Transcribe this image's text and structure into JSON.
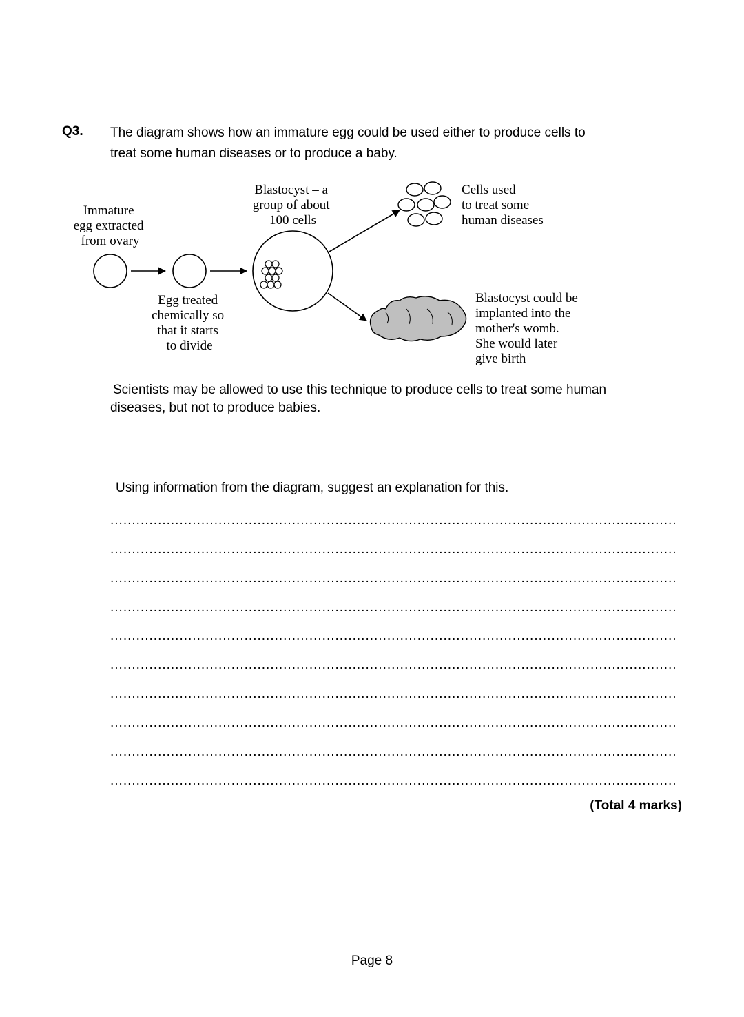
{
  "question": {
    "number": "Q3.",
    "intro_line1": "The diagram shows how an immature egg could be used either to produce cells to",
    "intro_line2": "treat some human diseases or to produce a baby.",
    "followup_line1": "Scientists may be allowed to use this technique to produce cells to treat some human",
    "followup_line2": "diseases, but not to produce babies.",
    "prompt": "Using information from the diagram, suggest an explanation for this.",
    "marks_label": "(Total 4 marks)"
  },
  "diagram": {
    "font_family_serif": "Times New Roman",
    "stroke": "#000000",
    "baby_fill": "#bfbfbf",
    "labels": {
      "immature_l1": "Immature",
      "immature_l2": "egg extracted",
      "immature_l3": "from ovary",
      "treated_l1": "Egg treated",
      "treated_l2": "chemically so",
      "treated_l3": "that it starts",
      "treated_l4": "to divide",
      "blasto_l1": "Blastocyst – a",
      "blasto_l2": "group of about",
      "blasto_l3": "100 cells",
      "cells_l1": "Cells used",
      "cells_l2": "to treat some",
      "cells_l3": "human diseases",
      "implant_l1": "Blastocyst could be",
      "implant_l2": "implanted into the",
      "implant_l3": "mother's womb.",
      "implant_l4": "She would later",
      "implant_l5": "give birth"
    }
  },
  "page_number": "Page 8",
  "answer_line_count": 10,
  "colors": {
    "text": "#000000",
    "background": "#ffffff"
  }
}
